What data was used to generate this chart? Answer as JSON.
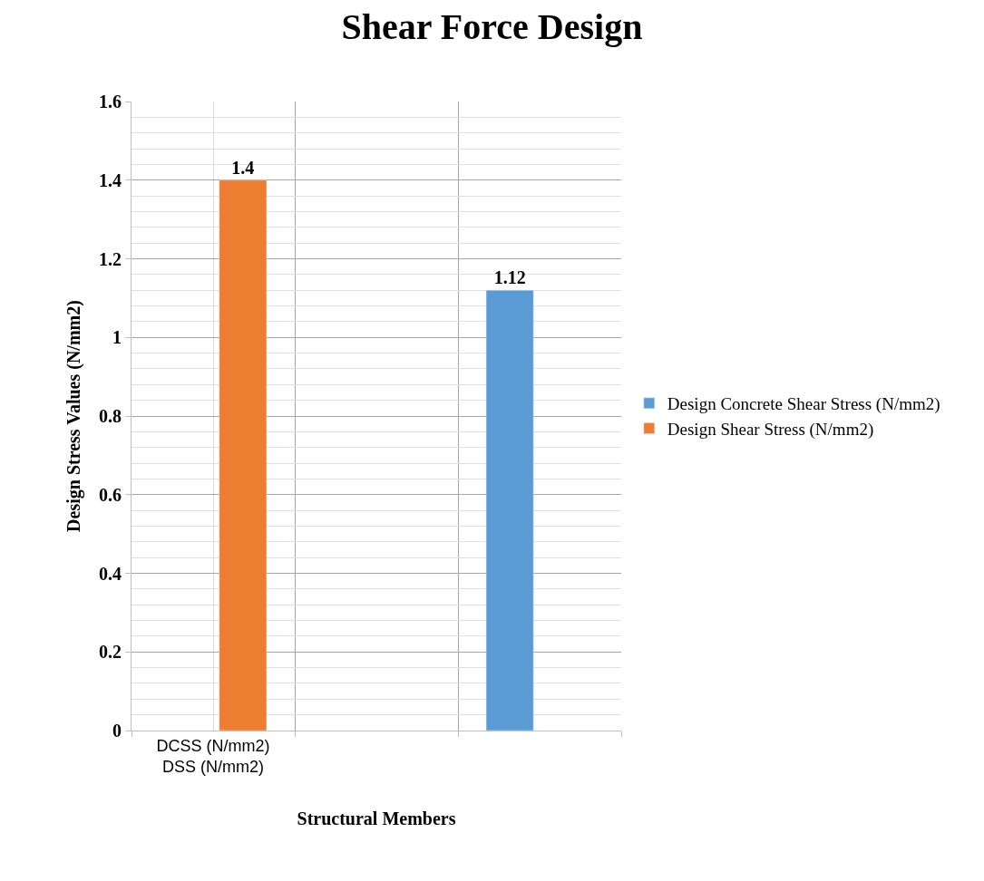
{
  "chart_data": {
    "type": "bar",
    "title": "Shear Force Design",
    "xlabel": "Structural Members",
    "ylabel": "Design Stress Values (N/mm2)",
    "categories": [
      "DCSS (N/mm2)\nDSS (N/mm2)",
      null,
      null
    ],
    "series": [
      {
        "name": "Design Concrete Shear Stress (N/mm2)",
        "color": "#5b9bd5",
        "values": [
          null,
          null,
          1.12
        ]
      },
      {
        "name": "Design Shear Stress (N/mm2)",
        "color": "#ed7d31",
        "values": [
          1.4,
          null,
          null
        ]
      }
    ],
    "ylim": [
      0,
      1.6
    ],
    "yticks": [
      0,
      0.2,
      0.4,
      0.6,
      0.8,
      1,
      1.2,
      1.4,
      1.6
    ],
    "grid": true,
    "legend": "right",
    "data_labels": true
  }
}
